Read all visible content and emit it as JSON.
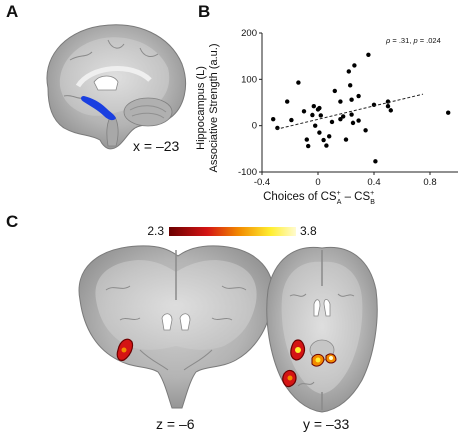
{
  "figure": {
    "panel_a": {
      "letter": "A",
      "coord_label": "x = –23"
    },
    "panel_b": {
      "letter": "B"
    },
    "panel_c": {
      "letter": "C",
      "colorbar": {
        "min_label": "2.3",
        "max_label": "3.8"
      },
      "coronal_label": "z = –6",
      "axial_label": "y = –33"
    }
  },
  "colors": {
    "seed": "#1a3fe0",
    "dark_red": "#6b0000",
    "red": "#d41414",
    "orange": "#f28a00",
    "yellow": "#ffee30",
    "pale_yellow": "#fffbd0",
    "scatter_point": "#000000"
  },
  "chart_data": {
    "type": "scatter",
    "title": "",
    "xlabel": "Choices of CS⁺ₐ – CS⁺ᵦ",
    "xlabel_main": "Choices of CS",
    "xlabel_sup1": "+",
    "xlabel_sub1": "A",
    "xlabel_mid": " – CS",
    "xlabel_sup2": "+",
    "xlabel_sub2": "B",
    "ylabel_line1": "Hippocampus (L)",
    "ylabel_line2": "Associative Strength (a.u.)",
    "annotation": "ρ = .31, p = .024",
    "annotation_rho": "ρ",
    "annotation_rest1": " = .31, ",
    "annotation_p": "p",
    "annotation_rest2": " = .024",
    "xlim": [
      -0.4,
      1.0
    ],
    "ylim": [
      -100,
      200
    ],
    "xticks": [
      -0.4,
      0,
      0.4,
      0.8
    ],
    "xtick_labels": [
      "-0.4",
      "0",
      "0.4",
      "0.8"
    ],
    "yticks": [
      -100,
      0,
      100,
      200
    ],
    "ytick_labels": [
      "-100",
      "0",
      "100",
      "200"
    ],
    "grid": false,
    "trend_line": {
      "x": [
        -0.3,
        0.75
      ],
      "y": [
        -8,
        68
      ],
      "style": "dashed"
    },
    "points": [
      {
        "x": -0.32,
        "y": 14
      },
      {
        "x": -0.29,
        "y": -5
      },
      {
        "x": -0.22,
        "y": 52
      },
      {
        "x": -0.19,
        "y": 12
      },
      {
        "x": -0.14,
        "y": 93
      },
      {
        "x": -0.1,
        "y": 31
      },
      {
        "x": -0.08,
        "y": -30
      },
      {
        "x": -0.07,
        "y": -44
      },
      {
        "x": -0.04,
        "y": 23
      },
      {
        "x": -0.03,
        "y": 42
      },
      {
        "x": -0.02,
        "y": 0
      },
      {
        "x": 0.0,
        "y": 35
      },
      {
        "x": 0.01,
        "y": 38
      },
      {
        "x": 0.01,
        "y": -15
      },
      {
        "x": 0.02,
        "y": 22
      },
      {
        "x": 0.04,
        "y": -31
      },
      {
        "x": 0.06,
        "y": -43
      },
      {
        "x": 0.08,
        "y": -23
      },
      {
        "x": 0.1,
        "y": 8
      },
      {
        "x": 0.12,
        "y": 75
      },
      {
        "x": 0.16,
        "y": 52
      },
      {
        "x": 0.16,
        "y": 14
      },
      {
        "x": 0.18,
        "y": 20
      },
      {
        "x": 0.2,
        "y": -30
      },
      {
        "x": 0.22,
        "y": 117
      },
      {
        "x": 0.23,
        "y": 87
      },
      {
        "x": 0.24,
        "y": 56
      },
      {
        "x": 0.24,
        "y": 24
      },
      {
        "x": 0.25,
        "y": 6
      },
      {
        "x": 0.26,
        "y": 130
      },
      {
        "x": 0.29,
        "y": 64
      },
      {
        "x": 0.29,
        "y": 11
      },
      {
        "x": 0.34,
        "y": -10
      },
      {
        "x": 0.36,
        "y": 153
      },
      {
        "x": 0.4,
        "y": 45
      },
      {
        "x": 0.41,
        "y": -77
      },
      {
        "x": 0.5,
        "y": 52
      },
      {
        "x": 0.5,
        "y": 42
      },
      {
        "x": 0.52,
        "y": 33
      },
      {
        "x": 0.93,
        "y": 28
      }
    ]
  }
}
